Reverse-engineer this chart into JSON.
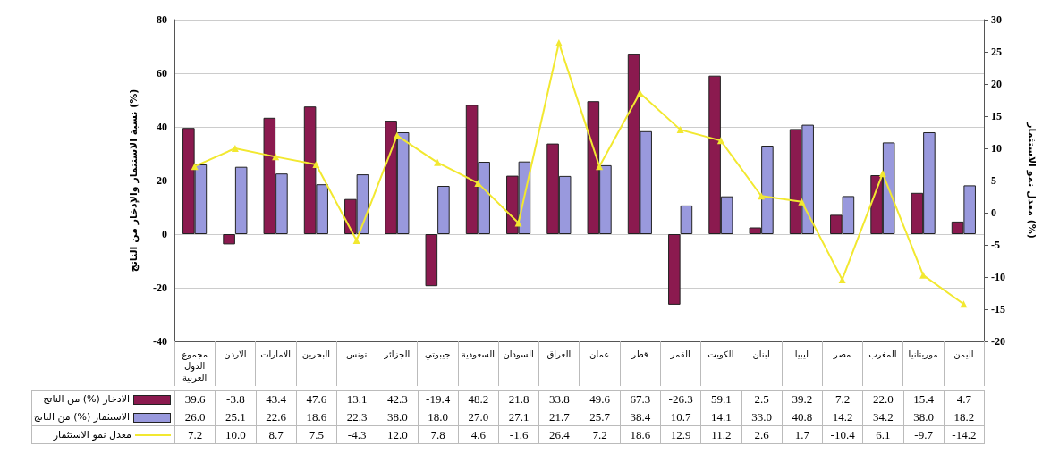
{
  "chart_data": {
    "type": "bar",
    "ylabel": "نسبة الاستثمار والإدخار من الناتج (%)",
    "y2label": "معدل نمو الاستثمار (%)",
    "categories": [
      "مجموع الدول العربية",
      "الاردن",
      "الامارات",
      "البحرين",
      "تونس",
      "الجزائر",
      "جيبوتي",
      "السعودية",
      "السودان",
      "العراق",
      "عمان",
      "قطر",
      "القمر",
      "الكويت",
      "لبنان",
      "ليبيا",
      "مصر",
      "المغرب",
      "موريتانيا",
      "اليمن"
    ],
    "series": [
      {
        "name": "الادخار (%) من الناتج",
        "color": "#8b1a4f",
        "values": [
          39.6,
          -3.8,
          43.4,
          47.6,
          13.1,
          42.3,
          -19.4,
          48.2,
          21.8,
          33.8,
          49.6,
          67.3,
          -26.3,
          59.1,
          2.5,
          39.2,
          7.2,
          22.0,
          15.4,
          4.7
        ],
        "value_labels": [
          "39.6",
          "-3.8",
          "43.4",
          "47.6",
          "13.1",
          "42.3",
          "-19.4",
          "48.2",
          "21.8",
          "33.8",
          "49.6",
          "67.3",
          "-26.3",
          "59.1",
          "2.5",
          "39.2",
          "7.2",
          "22.0",
          "15.4",
          "4.7"
        ]
      },
      {
        "name": "الاستثمار (%) من الناتج",
        "color": "#9999dd",
        "values": [
          26.0,
          25.1,
          22.6,
          18.6,
          22.3,
          38.0,
          18.0,
          27.0,
          27.1,
          21.7,
          25.7,
          38.4,
          10.7,
          14.1,
          33.0,
          40.8,
          14.2,
          34.2,
          38.0,
          18.2
        ],
        "value_labels": [
          "26.0",
          "25.1",
          "22.6",
          "18.6",
          "22.3",
          "38.0",
          "18.0",
          "27.0",
          "27.1",
          "21.7",
          "25.7",
          "38.4",
          "10.7",
          "14.1",
          "33.0",
          "40.8",
          "14.2",
          "34.2",
          "38.0",
          "18.2"
        ]
      },
      {
        "name": "معدل نمو الاستثمار",
        "type": "line",
        "axis": "y2",
        "color": "#f2e830",
        "marker": "triangle",
        "values": [
          7.2,
          10.0,
          8.7,
          7.5,
          -4.3,
          12.0,
          7.8,
          4.6,
          -1.6,
          26.4,
          7.2,
          18.6,
          12.9,
          11.2,
          2.6,
          1.7,
          -10.4,
          6.1,
          -9.7,
          -14.2
        ],
        "value_labels": [
          "7.2",
          "10.0",
          "8.7",
          "7.5",
          "-4.3",
          "12.0",
          "7.8",
          "4.6",
          "-1.6",
          "26.4",
          "7.2",
          "18.6",
          "12.9",
          "11.2",
          "2.6",
          "1.7",
          "-10.4",
          "6.1",
          "-9.7",
          "-14.2"
        ]
      }
    ],
    "ylim": [
      -40,
      80
    ],
    "yticks": [
      -40,
      -20,
      0,
      20,
      40,
      60,
      80
    ],
    "y2lim": [
      -20,
      30
    ],
    "y2ticks": [
      -20,
      -15,
      -10,
      -5,
      0,
      5,
      10,
      15,
      20,
      25,
      30
    ],
    "grid": "y",
    "legend": "bottom left"
  }
}
